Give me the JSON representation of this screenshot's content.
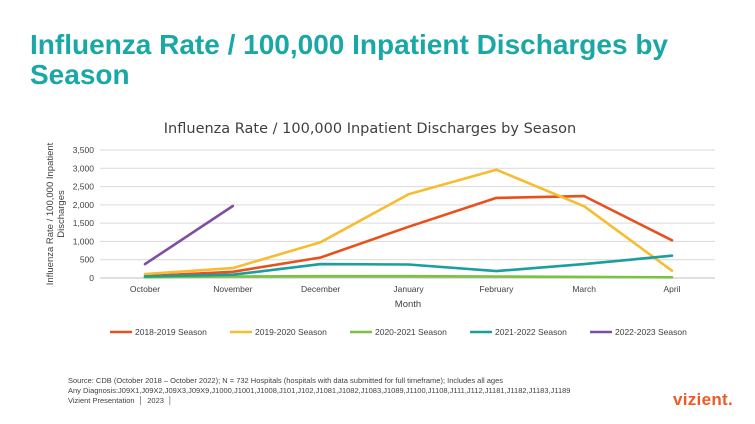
{
  "slide": {
    "title": "Influenza Rate / 100,000 Inpatient Discharges by Season"
  },
  "footer": {
    "source": "Source: CDB (October 2018 – October 2022); N = 732 Hospitals (hospitals with data submitted for full timeframe); Includes all ages",
    "diagnosis": "Any Diagnosis:J09X1,J09X2,J09X3,J09X9,J1000,J1001,J1008,J101,J102,J1081,J1082,J1083,J1089,J1100,J1108,J111,J112,J1181,J1182,J1183,J1189",
    "presentation": "Vizient Presentation",
    "year": "2023",
    "logo": "vizient."
  },
  "chart_data": {
    "type": "line",
    "title": "Influenza Rate / 100,000 Inpatient Discharges by Season",
    "xlabel": "Month",
    "ylabel": "Influenza Rate / 100,000 Inpatient Discharges",
    "categories": [
      "October",
      "November",
      "December",
      "January",
      "February",
      "March",
      "April"
    ],
    "ylim": [
      0,
      3500
    ],
    "yticks": [
      0,
      500,
      1000,
      1500,
      2000,
      2500,
      3000,
      3500
    ],
    "ytick_labels": [
      "0",
      "500",
      "1,000",
      "1,500",
      "2,000",
      "2,500",
      "3,000",
      "3,500"
    ],
    "grid": true,
    "legend_position": "bottom",
    "series": [
      {
        "name": "2018-2019 Season",
        "color": "#e8501e",
        "values": [
          50,
          170,
          560,
          1400,
          2190,
          2240,
          1030
        ]
      },
      {
        "name": "2019-2020 Season",
        "color": "#f5bd2f",
        "values": [
          110,
          270,
          980,
          2290,
          2960,
          1960,
          200
        ]
      },
      {
        "name": "2020-2021 Season",
        "color": "#7cc242",
        "values": [
          20,
          40,
          50,
          50,
          40,
          30,
          20
        ]
      },
      {
        "name": "2021-2022 Season",
        "color": "#1a9e9e",
        "values": [
          40,
          90,
          380,
          370,
          190,
          380,
          610
        ]
      },
      {
        "name": "2022-2023 Season",
        "color": "#7e4ea3",
        "values": [
          380,
          1970,
          null,
          null,
          null,
          null,
          null
        ]
      }
    ]
  }
}
